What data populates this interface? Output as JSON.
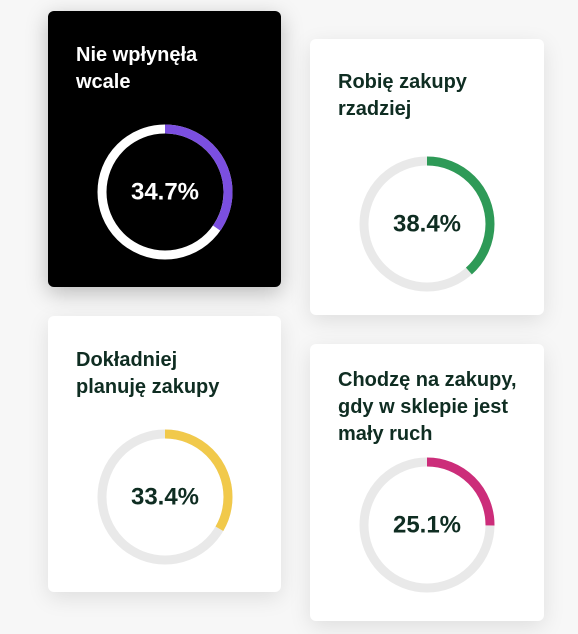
{
  "chart_data": {
    "type": "donut",
    "cards": [
      {
        "label": "Nie wpłynęła wcale",
        "value": 34.7,
        "display": "34.7%",
        "color": "#7b4fe0",
        "theme": "dark"
      },
      {
        "label": "Robię zakupy rzadziej",
        "value": 38.4,
        "display": "38.4%",
        "color": "#2e9a57",
        "theme": "light"
      },
      {
        "label": "Dokładniej planuję zakupy",
        "value": 33.4,
        "display": "33.4%",
        "color": "#f1c94b",
        "theme": "light"
      },
      {
        "label": "Chodzę na zakupy, gdy w sklepie jest mały ruch",
        "value": 25.1,
        "display": "25.1%",
        "color": "#cc2d7a",
        "theme": "light"
      }
    ]
  }
}
